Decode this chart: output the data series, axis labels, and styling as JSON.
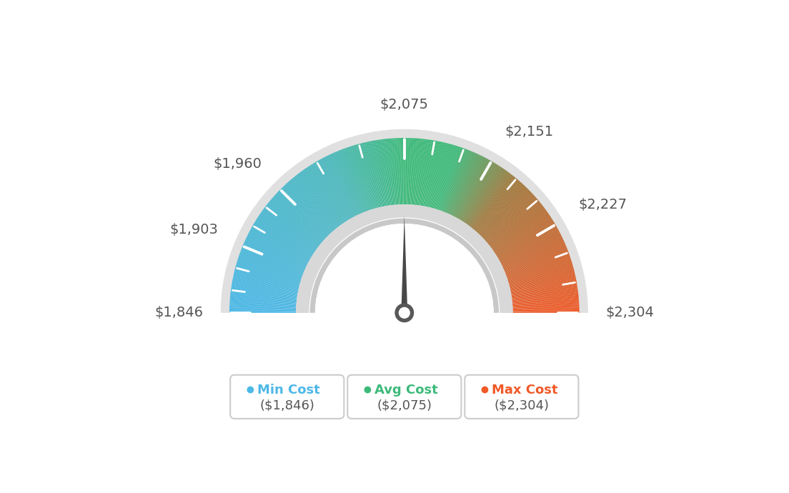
{
  "min_val": 1846,
  "avg_val": 2075,
  "max_val": 2304,
  "gauge_labels": [
    "$1,846",
    "$1,903",
    "$1,960",
    "$2,075",
    "$2,151",
    "$2,227",
    "$2,304"
  ],
  "gauge_values": [
    1846,
    1903,
    1960,
    2075,
    2151,
    2227,
    2304
  ],
  "legend_items": [
    {
      "label": "Min Cost",
      "value": "($1,846)",
      "color": "#4db8e8"
    },
    {
      "label": "Avg Cost",
      "value": "($2,075)",
      "color": "#3dba7a"
    },
    {
      "label": "Max Cost",
      "value": "($2,304)",
      "color": "#f05a28"
    }
  ],
  "bg_color": "#ffffff",
  "color_stops": [
    [
      0.0,
      [
        74,
        184,
        232
      ]
    ],
    [
      0.35,
      [
        74,
        184,
        190
      ]
    ],
    [
      0.5,
      [
        61,
        186,
        122
      ]
    ],
    [
      0.6,
      [
        61,
        186,
        122
      ]
    ],
    [
      0.72,
      [
        160,
        120,
        60
      ]
    ],
    [
      1.0,
      [
        240,
        90,
        40
      ]
    ]
  ]
}
